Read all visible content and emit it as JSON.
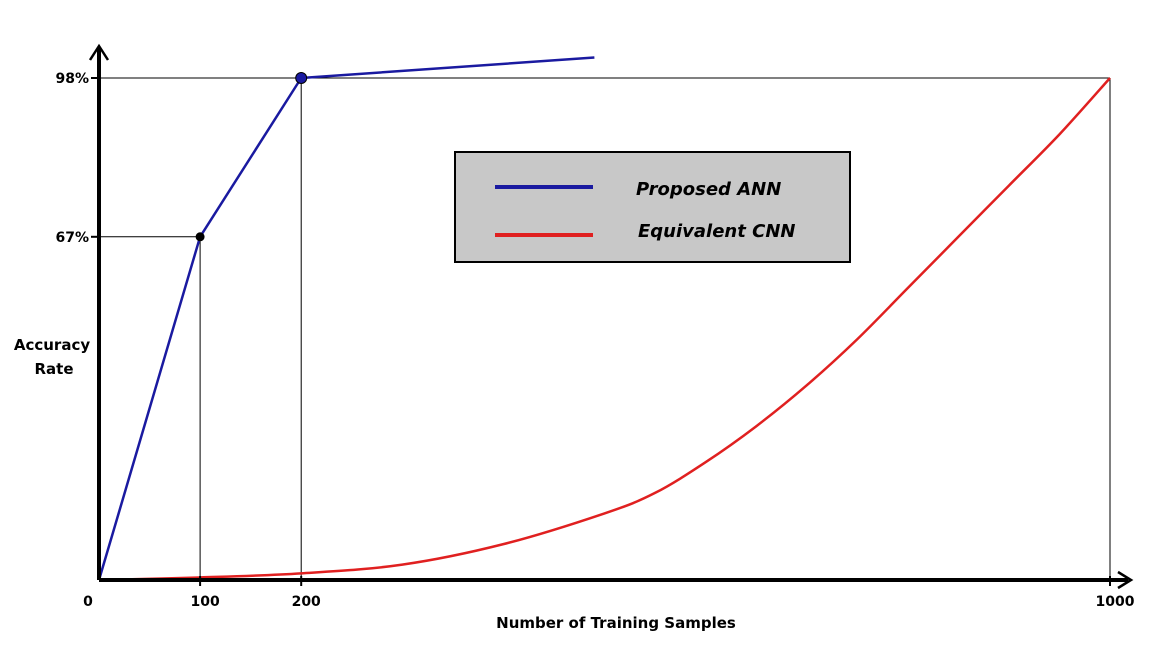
{
  "chart_data": {
    "type": "line",
    "xlabel": "Number of Training Samples",
    "ylabel_lines": [
      "Accuracy",
      "Rate"
    ],
    "x_ticks": [
      {
        "value": 0,
        "label": "0"
      },
      {
        "value": 100,
        "label": "100"
      },
      {
        "value": 200,
        "label": "200"
      },
      {
        "value": 1000,
        "label": "1000"
      }
    ],
    "y_ticks": [
      {
        "value": 67,
        "label": "67%"
      },
      {
        "value": 98,
        "label": "98%"
      }
    ],
    "xlim": [
      0,
      1000
    ],
    "ylim": [
      0,
      98
    ],
    "legend_position": "top-center",
    "series": [
      {
        "name": "Proposed ANN",
        "color": "#1a1aa0",
        "points": [
          [
            0,
            0
          ],
          [
            100,
            67
          ],
          [
            200,
            98
          ],
          [
            490,
            102
          ]
        ],
        "markers": [
          [
            100,
            67
          ],
          [
            200,
            98
          ]
        ]
      },
      {
        "name": "Equivalent CNN",
        "color": "#e02020",
        "points": [
          [
            0,
            0
          ],
          [
            100,
            0.5
          ],
          [
            200,
            1.3
          ],
          [
            300,
            3
          ],
          [
            400,
            7
          ],
          [
            500,
            13
          ],
          [
            550,
            17
          ],
          [
            600,
            23
          ],
          [
            650,
            30
          ],
          [
            700,
            38
          ],
          [
            750,
            47
          ],
          [
            800,
            57
          ],
          [
            850,
            67
          ],
          [
            900,
            77
          ],
          [
            950,
            87
          ],
          [
            1000,
            98
          ]
        ],
        "markers": []
      }
    ],
    "reference_lines": [
      {
        "x": 100,
        "y": 67
      },
      {
        "x": 200,
        "y": 98
      },
      {
        "x": 1000,
        "y": 98
      }
    ]
  }
}
